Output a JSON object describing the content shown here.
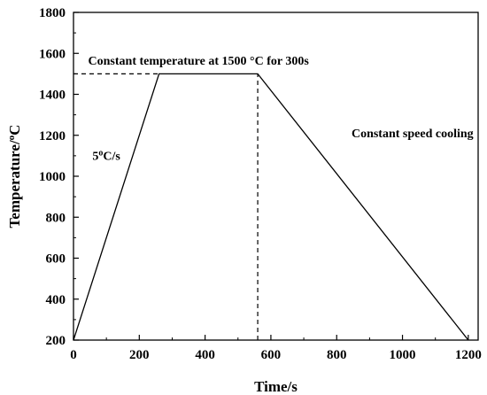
{
  "chart_data": {
    "type": "line",
    "xlabel": "Time/s",
    "ylabel_main": "Temperature/",
    "ylabel_degree": "o",
    "ylabel_unit": "C",
    "xlim": [
      0,
      1230
    ],
    "ylim": [
      200,
      1800
    ],
    "xticks": [
      0,
      200,
      400,
      600,
      800,
      1000,
      1200
    ],
    "yticks": [
      200,
      400,
      600,
      800,
      1000,
      1200,
      1400,
      1600,
      1800
    ],
    "series": [
      {
        "x": [
          0,
          260,
          560,
          1200
        ],
        "y": [
          200,
          1500,
          1500,
          200
        ]
      }
    ],
    "reference_lines": [
      {
        "style": "dashed",
        "x": [
          0,
          260
        ],
        "y": [
          1500,
          1500
        ]
      },
      {
        "style": "dashed",
        "x": [
          560,
          560
        ],
        "y": [
          200,
          1500
        ]
      }
    ],
    "annotations": {
      "hold": {
        "text": "Constant temperature at 1500 °C for 300s",
        "x": 380,
        "y": 1545
      },
      "heating": {
        "text_pre": "5",
        "text_sup": "o",
        "text_post": "C/s",
        "x": 100,
        "y": 1080
      },
      "cooling": {
        "text": "Constant speed cooling",
        "x": 845,
        "y": 1190
      }
    },
    "grid": false,
    "colors": {
      "line": "#000000",
      "axis": "#000000"
    }
  }
}
